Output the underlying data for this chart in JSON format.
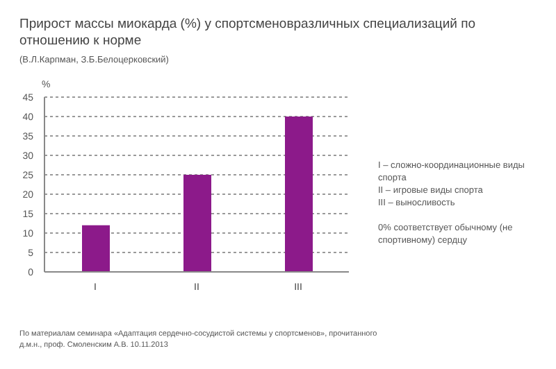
{
  "chart_data": {
    "type": "bar",
    "title": "Прирост массы миокарда (%) у спортсменовразличных специализаций по отношению к норме",
    "subtitle": "(В.Л.Карпман, З.Б.Белоцерковский)",
    "ylabel": "%",
    "categories": [
      "I",
      "II",
      "III"
    ],
    "values": [
      12,
      25,
      40
    ],
    "color": "#8c1a8a",
    "ylim": [
      0,
      45
    ],
    "yticks": [
      0,
      5,
      10,
      15,
      20,
      25,
      30,
      35,
      40,
      45
    ],
    "grid": "y",
    "annotations": [
      "I – сложно-координационные виды спорта",
      "II – игровые виды спорта",
      "III – выносливость",
      "0% соответствует обычному (не спортивному) сердцу",
      "По материалам семинара «Адаптация сердечно-сосудистой системы у спортсменов», прочитанного д.м.н., проф. Смоленским А.В. 10.11.2013"
    ]
  }
}
